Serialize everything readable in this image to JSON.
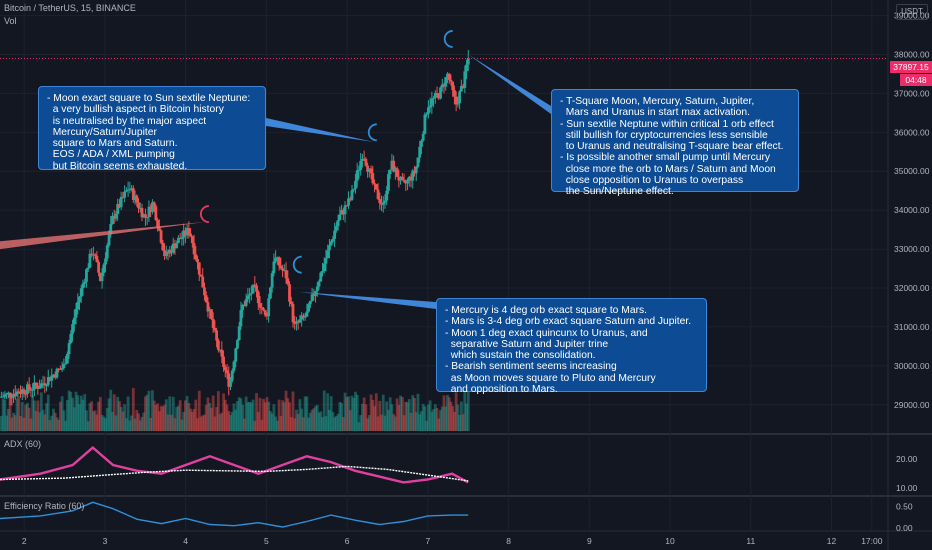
{
  "header": {
    "symbol": "Bitcoin / TetherUS, 15, BINANCE",
    "volume_label": "Vol",
    "currency": "USDT"
  },
  "price_tag": {
    "price": "37897.15",
    "countdown": "04:48"
  },
  "adx_panel": {
    "title": "ADX (60)"
  },
  "er_panel": {
    "title": "Efficiency Ratio (60)"
  },
  "annotations": {
    "left": "- Moon exact square to Sun sextile Neptune:\n  a very bullish aspect in Bitcoin history\n  is neutralised by the major aspect\n  Mercury/Saturn/Jupiter\n  square to Mars and Saturn.\n  EOS / ADA / XML pumping\n  but Bitcoin seems exhausted.",
    "right": "- T-Square Moon, Mercury, Saturn, Jupiter,\n  Mars and Uranus in start max activation.\n- Sun sextile Neptune within critical 1 orb effect\n  still bullish for cryptocurrencies less sensible\n  to Uranus and neutralising T-square bear effect.\n- Is possible another small pump until Mercury\n  close more the orb to Mars / Saturn and Moon\n  close opposition to Uranus to overpass\n  the Sun/Neptune effect.",
    "bottom": "- Mercury is 4 deg orb exact square to Mars.\n- Mars is 3-4 deg orb exact square Saturn and Jupiter.\n- Moon 1 deg exact quincunx to Uranus, and\n  separative Saturn and Jupiter trine\n  which sustain the consolidation.\n- Bearish sentiment seems increasing\n  as Moon moves square to Pluto and Mercury\n  and opposition to Mars."
  },
  "colors": {
    "background": "#131722",
    "grid": "#1e222d",
    "up": "#26a69a",
    "down": "#ef5350",
    "note_bg": "#0d4c94",
    "adx": "#e040a0",
    "adx_signal": "#ffffff",
    "efficiency_ratio": "#2f8fd8",
    "moon_red": "#e53963",
    "moon_blue": "#2d8fd8"
  },
  "chart_data": [
    {
      "type": "candlestick",
      "title": "Bitcoin / TetherUS, 15, BINANCE",
      "x_axis": {
        "ticks": [
          "2",
          "3",
          "4",
          "5",
          "6",
          "7",
          "8",
          "9",
          "10",
          "11",
          "12",
          "17:00"
        ],
        "range_days": [
          1.7,
          12.7
        ]
      },
      "y_axis": {
        "unit": "USDT",
        "ticks": [
          29000,
          30000,
          31000,
          32000,
          33000,
          34000,
          35000,
          36000,
          37000,
          38000,
          39000
        ],
        "tick_labels": [
          "29000.00",
          "30000.00",
          "31000.00",
          "32000.00",
          "33000.00",
          "34000.00",
          "35000.00",
          "36000.00",
          "37000.00",
          "38000.00",
          "39000.00"
        ],
        "range": [
          28300,
          39400
        ]
      },
      "last_price": 37897.15,
      "price_path": [
        [
          1.7,
          29200
        ],
        [
          2.2,
          29500
        ],
        [
          2.5,
          30000
        ],
        [
          2.65,
          31500
        ],
        [
          2.85,
          33000
        ],
        [
          2.95,
          32200
        ],
        [
          3.1,
          33800
        ],
        [
          3.3,
          34600
        ],
        [
          3.5,
          33800
        ],
        [
          3.6,
          34200
        ],
        [
          3.75,
          32800
        ],
        [
          3.9,
          33200
        ],
        [
          4.05,
          33500
        ],
        [
          4.2,
          32200
        ],
        [
          4.4,
          30500
        ],
        [
          4.55,
          29500
        ],
        [
          4.7,
          31500
        ],
        [
          4.85,
          32000
        ],
        [
          5.0,
          31200
        ],
        [
          5.1,
          32800
        ],
        [
          5.25,
          32300
        ],
        [
          5.35,
          31000
        ],
        [
          5.5,
          31300
        ],
        [
          5.7,
          32500
        ],
        [
          5.9,
          33800
        ],
        [
          6.05,
          34300
        ],
        [
          6.2,
          35500
        ],
        [
          6.35,
          34500
        ],
        [
          6.45,
          34100
        ],
        [
          6.55,
          35200
        ],
        [
          6.7,
          34600
        ],
        [
          6.85,
          35000
        ],
        [
          7.0,
          36700
        ],
        [
          7.15,
          37000
        ],
        [
          7.25,
          37500
        ],
        [
          7.35,
          36700
        ],
        [
          7.45,
          37300
        ],
        [
          7.5,
          37897
        ]
      ],
      "moon_markers": [
        {
          "day": 4.25,
          "price": 33900,
          "color": "red"
        },
        {
          "day": 5.4,
          "price": 32600,
          "color": "blue"
        },
        {
          "day": 6.33,
          "price": 36000,
          "color": "blue"
        },
        {
          "day": 7.27,
          "price": 38400,
          "color": "blue"
        }
      ]
    },
    {
      "type": "line",
      "title": "ADX (60)",
      "y_axis": {
        "ticks": [
          10,
          20
        ],
        "tick_labels": [
          "10.00",
          "20.00"
        ],
        "range": [
          8,
          28
        ]
      },
      "series": [
        {
          "color": "pink",
          "points": [
            [
              1.7,
              13
            ],
            [
              2.2,
              15
            ],
            [
              2.6,
              18
            ],
            [
              2.85,
              24
            ],
            [
              3.1,
              18
            ],
            [
              3.4,
              16
            ],
            [
              3.7,
              15
            ],
            [
              4.0,
              18
            ],
            [
              4.3,
              21
            ],
            [
              4.6,
              18
            ],
            [
              4.9,
              15
            ],
            [
              5.2,
              18
            ],
            [
              5.5,
              21
            ],
            [
              5.8,
              19
            ],
            [
              6.1,
              16
            ],
            [
              6.4,
              14
            ],
            [
              6.7,
              12
            ],
            [
              7.0,
              13
            ],
            [
              7.3,
              15
            ],
            [
              7.5,
              12
            ]
          ]
        },
        {
          "color": "white",
          "points": [
            [
              1.7,
              13
            ],
            [
              2.5,
              13.5
            ],
            [
              3.0,
              14.5
            ],
            [
              3.5,
              15.5
            ],
            [
              4.0,
              16.2
            ],
            [
              4.5,
              16
            ],
            [
              5.0,
              15.8
            ],
            [
              5.5,
              16.5
            ],
            [
              6.0,
              17.5
            ],
            [
              6.5,
              16.5
            ],
            [
              7.0,
              14.5
            ],
            [
              7.5,
              12.5
            ]
          ]
        }
      ]
    },
    {
      "type": "line",
      "title": "Efficiency Ratio (60)",
      "y_axis": {
        "ticks": [
          0,
          0.5
        ],
        "tick_labels": [
          "0.00",
          "0.50"
        ],
        "range": [
          -0.05,
          0.7
        ]
      },
      "series": [
        {
          "color": "blue",
          "points": [
            [
              1.7,
              0.22
            ],
            [
              2.2,
              0.28
            ],
            [
              2.6,
              0.4
            ],
            [
              2.85,
              0.6
            ],
            [
              3.1,
              0.45
            ],
            [
              3.4,
              0.2
            ],
            [
              3.7,
              0.1
            ],
            [
              4.0,
              0.22
            ],
            [
              4.3,
              0.08
            ],
            [
              4.6,
              0.05
            ],
            [
              4.9,
              0.12
            ],
            [
              5.2,
              0.02
            ],
            [
              5.5,
              0.15
            ],
            [
              5.8,
              0.3
            ],
            [
              6.1,
              0.18
            ],
            [
              6.4,
              0.08
            ],
            [
              6.7,
              0.15
            ],
            [
              7.0,
              0.28
            ],
            [
              7.3,
              0.3
            ],
            [
              7.5,
              0.3
            ]
          ]
        }
      ]
    }
  ]
}
